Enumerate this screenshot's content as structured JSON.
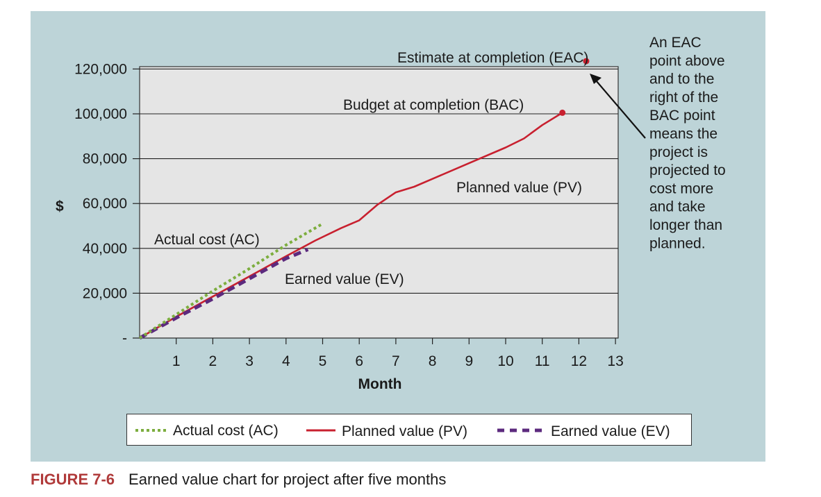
{
  "chart_data": {
    "type": "line",
    "title": "",
    "xlabel": "Month",
    "ylabel": "$",
    "xlim": [
      0,
      13
    ],
    "ylim": [
      0,
      125000
    ],
    "x_ticks": [
      1,
      2,
      3,
      4,
      5,
      6,
      7,
      8,
      9,
      10,
      11,
      12,
      13
    ],
    "y_ticks": [
      0,
      20000,
      40000,
      60000,
      80000,
      100000,
      120000
    ],
    "y_tick_labels": [
      "-",
      "20,000",
      "40,000",
      "60,000",
      "80,000",
      "100,000",
      "120,000"
    ],
    "grid": "horizontal",
    "series": [
      {
        "name": "Actual cost (AC)",
        "style": "dotted",
        "color": "#7cad3e",
        "x": [
          0,
          1,
          2,
          3,
          4,
          5
        ],
        "y": [
          0,
          10500,
          21000,
          31000,
          41500,
          51000
        ]
      },
      {
        "name": "Planned value (PV)",
        "style": "solid",
        "color": "#c8202f",
        "x": [
          0,
          1,
          2,
          3,
          4,
          4.8,
          5.5,
          6,
          6.5,
          7,
          7.5,
          8,
          9,
          10,
          10.5,
          11,
          11.55
        ],
        "y": [
          0,
          9500,
          18500,
          27500,
          36500,
          43500,
          49000,
          52500,
          59500,
          65000,
          67500,
          71000,
          78000,
          85000,
          89000,
          95000,
          100500
        ]
      },
      {
        "name": "Earned value (EV)",
        "style": "dashed",
        "color": "#5c2a7e",
        "x": [
          0,
          1,
          2,
          3,
          4,
          4.6
        ],
        "y": [
          0,
          9000,
          17500,
          26500,
          35500,
          39500
        ]
      }
    ],
    "points": [
      {
        "name": "Budget at completion (BAC)",
        "x": 11.55,
        "y": 100500,
        "color": "#c8202f"
      },
      {
        "name": "Estimate at completion (EAC)",
        "x": 12.2,
        "y": 123500,
        "color": "#c8202f"
      }
    ],
    "labels": {
      "ac": "Actual cost (AC)",
      "ev": "Earned value (EV)",
      "pv": "Planned value (PV)",
      "bac": "Budget at completion (BAC)",
      "eac": "Estimate at completion (EAC)",
      "dollar": "$",
      "month": "Month"
    },
    "annotation_lines": [
      "An EAC",
      "point above",
      "and to the",
      "right of the",
      "BAC point",
      "means the",
      "project is",
      "projected to",
      "cost more",
      "and take",
      "longer than",
      "planned."
    ],
    "legend": {
      "placement": "bottom",
      "entries": [
        "Actual cost (AC)",
        "Planned value (PV)",
        "Earned value (EV)"
      ]
    }
  },
  "caption": {
    "figure": "FIGURE 7-6",
    "text": "Earned value chart for project after five months"
  },
  "colors": {
    "panel": "#bdd4d8",
    "plot": "#e5e5e5",
    "figure_label": "#b03a3a"
  }
}
